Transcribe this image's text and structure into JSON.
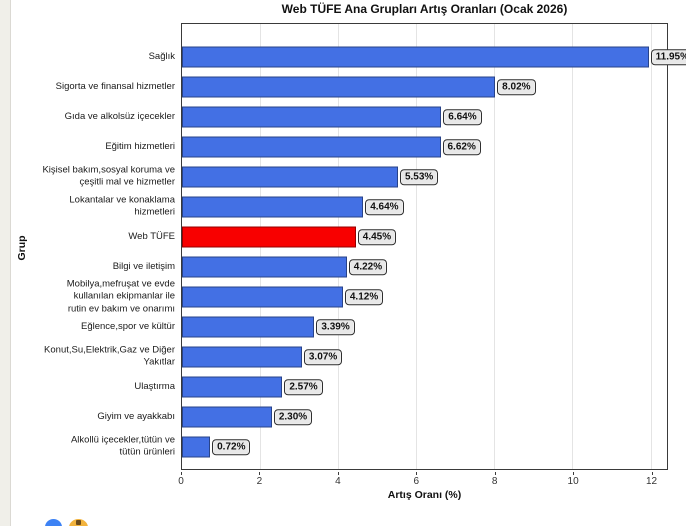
{
  "chart_data": {
    "type": "bar",
    "orientation": "horizontal",
    "title": "Web TÜFE Ana Grupları Artış Oranları (Ocak 2026)",
    "xlabel": "Artış Oranı (%)",
    "ylabel": "Grup",
    "xlim": [
      0,
      12.42
    ],
    "xticks": [
      0,
      2,
      4,
      6,
      8,
      10,
      12
    ],
    "grid": "vertical-light",
    "legend": "none",
    "categories": [
      "Sağlık",
      "Sigorta ve finansal hizmetler",
      "Gıda ve alkolsüz içecekler",
      "Eğitim hizmetleri",
      "Kişisel bakım,sosyal koruma ve\nçeşitli mal ve hizmetler",
      "Lokantalar ve konaklama\nhizmetleri",
      "Web TÜFE",
      "Bilgi ve iletişim",
      "Mobilya,mefruşat ve evde\nkullanılan ekipmanlar ile\nrutin ev bakım ve onarımı",
      "Eğlence,spor ve kültür",
      "Konut,Su,Elektrik,Gaz ve Diğer\nYakıtlar",
      "Ulaştırma",
      "Giyim ve ayakkabı",
      "Alkollü içecekler,tütün ve\ntütün ürünleri"
    ],
    "values": [
      11.95,
      8.02,
      6.64,
      6.62,
      5.53,
      4.64,
      4.45,
      4.22,
      4.12,
      3.39,
      3.07,
      2.57,
      2.3,
      0.72
    ],
    "value_labels": [
      "11.95%",
      "8.02%",
      "6.64%",
      "6.62%",
      "5.53%",
      "4.64%",
      "4.45%",
      "4.22%",
      "4.12%",
      "3.39%",
      "3.07%",
      "2.57%",
      "2.30%",
      "0.72%"
    ],
    "highlight_index": 6,
    "highlight_category": "Web TÜFE",
    "colors": {
      "bar_default": "#4370e4",
      "bar_highlight": "#f80000",
      "label_box_bg": "#e8e8e8",
      "label_box_border": "#2f2f2f",
      "plot_border": "#3a3a3a",
      "gridline": "#e4e4e4"
    }
  },
  "decor": {
    "bottom_icons": [
      "blue-circle-icon",
      "yellow-circle-icon"
    ]
  }
}
